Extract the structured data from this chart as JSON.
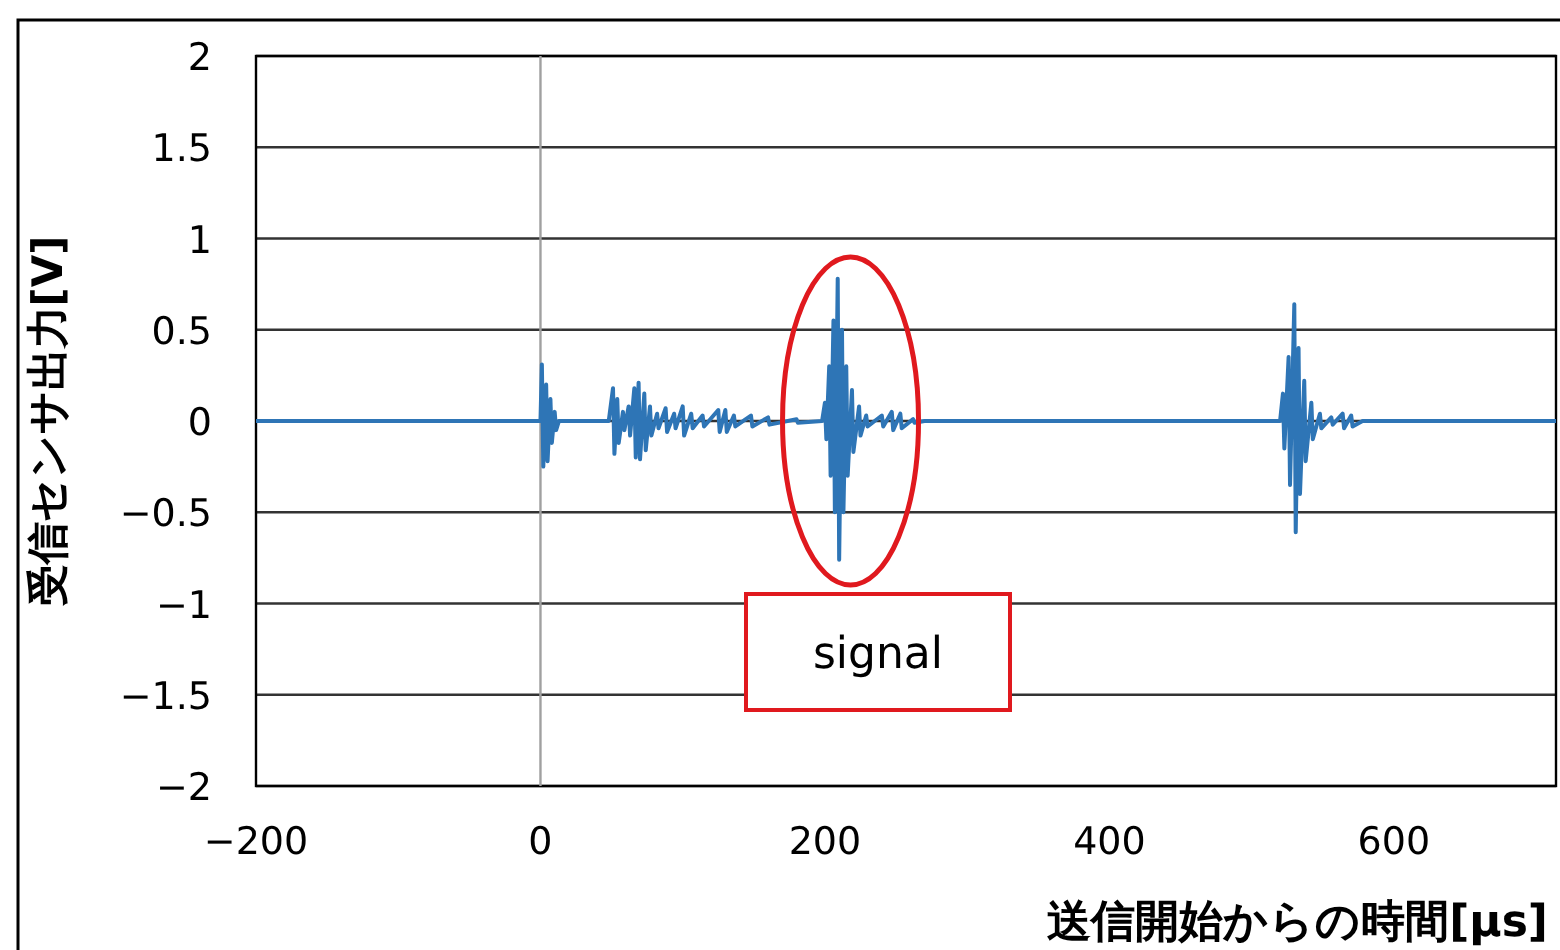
{
  "chart_data": {
    "type": "line",
    "xlabel": "送信開始からの時間[µs]",
    "ylabel": "受信センサ出力[V]",
    "xlim": [
      -200,
      714
    ],
    "xticks": [
      -200,
      0,
      200,
      400,
      600
    ],
    "ylim": [
      -2,
      2
    ],
    "yticks": [
      -2,
      -1.5,
      -1,
      -0.5,
      0,
      0.5,
      1,
      1.5,
      2
    ],
    "grid": "y",
    "marker": "none",
    "line_style": "solid",
    "ref_lines": [
      {
        "axis": "x",
        "value": 0,
        "color": "#a0a0a0"
      }
    ],
    "annotations": [
      "signal"
    ],
    "series": [
      {
        "color": "#2e75b6",
        "x": [
          -200,
          0,
          1,
          2,
          4,
          5,
          7,
          8,
          10,
          11,
          13,
          48,
          51,
          52,
          54,
          55,
          58,
          59,
          62,
          63,
          66,
          67,
          69,
          70,
          73,
          74,
          77,
          78,
          82,
          83,
          88,
          89,
          94,
          95,
          100,
          101,
          106,
          107,
          114,
          115,
          125,
          126,
          130,
          131,
          136,
          137,
          148,
          149,
          160,
          161,
          180,
          181,
          198,
          200,
          201,
          203,
          204,
          206,
          207,
          209,
          210,
          212,
          213,
          215,
          216,
          219,
          220,
          224,
          225,
          229,
          230,
          240,
          241,
          247,
          248,
          253,
          254,
          262,
          263,
          270,
          520,
          522,
          523,
          526,
          527,
          530,
          531,
          533,
          534,
          537,
          538,
          542,
          543,
          548,
          549,
          556,
          557,
          564,
          565,
          570,
          571,
          578,
          714
        ],
        "values": [
          0,
          0,
          0.31,
          -0.25,
          0.2,
          -0.22,
          0.12,
          -0.12,
          0.05,
          -0.05,
          0,
          0,
          0.18,
          -0.18,
          0.12,
          -0.12,
          0.05,
          -0.05,
          0.08,
          -0.08,
          0.18,
          -0.2,
          0.21,
          -0.21,
          0.15,
          -0.16,
          0.08,
          -0.08,
          0.04,
          -0.04,
          0.07,
          -0.06,
          0.04,
          -0.04,
          0.08,
          -0.08,
          0.04,
          -0.04,
          0.03,
          -0.03,
          0.06,
          -0.06,
          0.06,
          -0.06,
          0.03,
          -0.03,
          0.03,
          -0.03,
          0.02,
          -0.02,
          0.01,
          -0.01,
          0,
          0.1,
          -0.1,
          0.3,
          -0.3,
          0.55,
          -0.5,
          0.78,
          -0.76,
          0.5,
          -0.5,
          0.3,
          -0.3,
          0.17,
          -0.17,
          0.08,
          -0.08,
          0.03,
          -0.03,
          0.03,
          -0.03,
          0.05,
          -0.05,
          0.04,
          -0.04,
          0.01,
          -0.01,
          0,
          0,
          0.15,
          -0.15,
          0.35,
          -0.35,
          0.64,
          -0.61,
          0.4,
          -0.4,
          0.22,
          -0.22,
          0.1,
          -0.1,
          0.04,
          -0.04,
          0.02,
          -0.02,
          0.04,
          -0.04,
          0.03,
          -0.03,
          0,
          0
        ]
      }
    ]
  }
}
